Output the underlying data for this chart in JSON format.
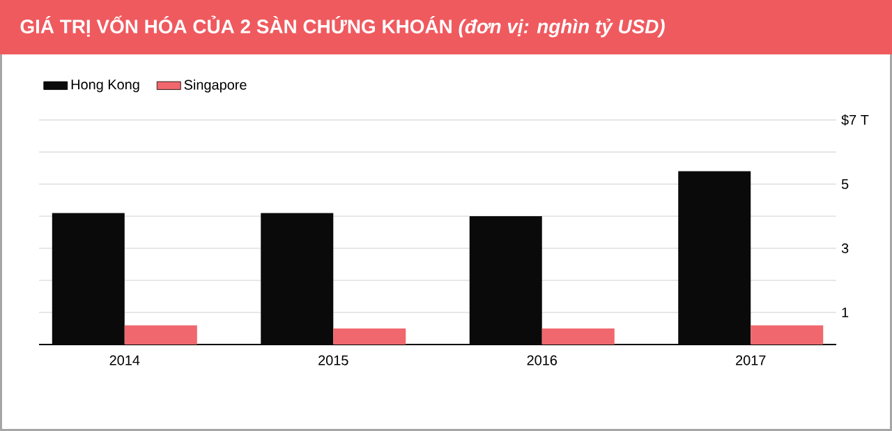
{
  "chart_data": {
    "type": "bar",
    "title": "GIÁ TRỊ VỐN HÓA CỦA 2 SÀN CHỨNG KHOÁN *(đơn vị: nghìn tỷ USD)*",
    "categories": [
      "2014",
      "2015",
      "2016",
      "2017"
    ],
    "series": [
      {
        "name": "Hong Kong",
        "color": "#0a0a0a",
        "values": [
          4.1,
          4.1,
          4.0,
          5.4
        ]
      },
      {
        "name": "Singapore",
        "color": "#f0686d",
        "values": [
          0.6,
          0.5,
          0.5,
          0.6
        ]
      }
    ],
    "ylim": [
      0,
      7
    ],
    "yticks": [
      {
        "value": 1,
        "label": "1"
      },
      {
        "value": 2,
        "label": null
      },
      {
        "value": 3,
        "label": "3"
      },
      {
        "value": 4,
        "label": null
      },
      {
        "value": 5,
        "label": "5"
      },
      {
        "value": 6,
        "label": null
      },
      {
        "value": 7,
        "label": "$7 T"
      }
    ],
    "grid": "y",
    "legend": "top left"
  }
}
